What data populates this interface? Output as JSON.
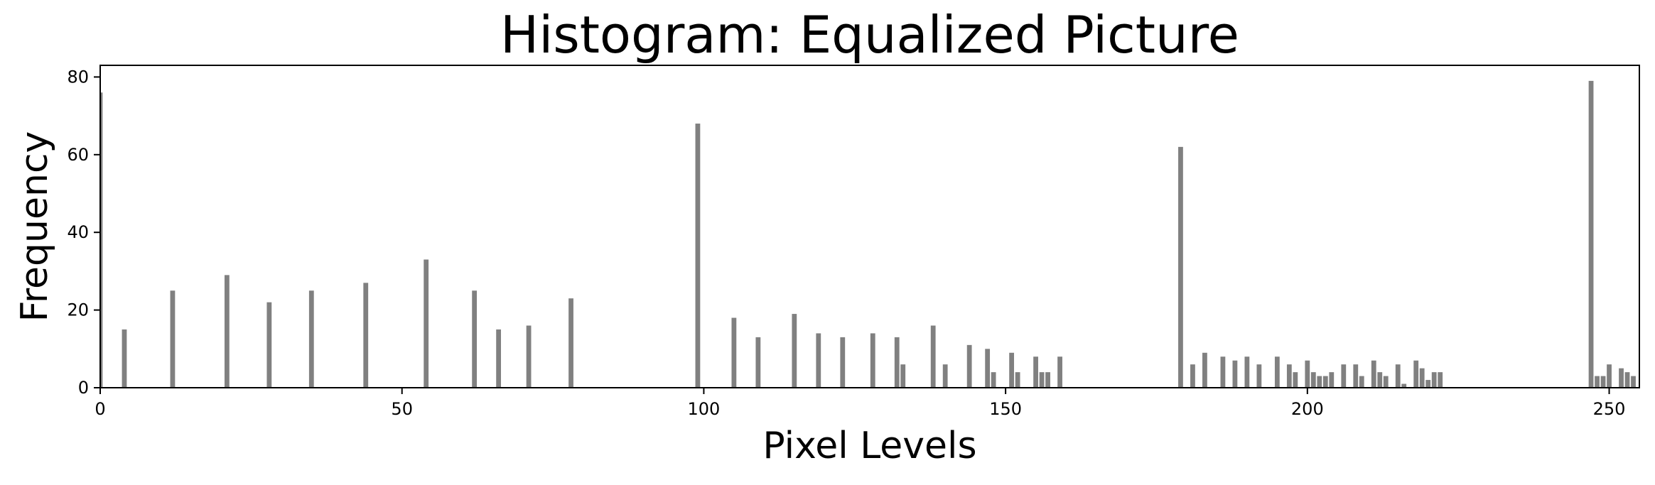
{
  "chart_data": {
    "type": "bar",
    "title": "Histogram: Equalized Picture",
    "xlabel": "Pixel Levels",
    "ylabel": "Frequency",
    "xlim": [
      0,
      255
    ],
    "ylim": [
      0,
      83
    ],
    "xticks": [
      0,
      50,
      100,
      150,
      200,
      250
    ],
    "yticks": [
      0,
      20,
      40,
      60,
      80
    ],
    "grid": false,
    "bar_color": "#808080",
    "series": [
      {
        "x": [
          0,
          4,
          12,
          21,
          28,
          35,
          44,
          54,
          62,
          66,
          71,
          78,
          99,
          105,
          109,
          115,
          119,
          123,
          128,
          132,
          133,
          138,
          140,
          144,
          147,
          148,
          151,
          152,
          155,
          156,
          157,
          159,
          179,
          181,
          183,
          186,
          188,
          190,
          192,
          195,
          197,
          198,
          200,
          201,
          202,
          203,
          204,
          206,
          208,
          209,
          211,
          212,
          213,
          215,
          216,
          218,
          219,
          220,
          221,
          222,
          247,
          248,
          249,
          250,
          252,
          253,
          254
        ],
        "values": [
          76,
          15,
          25,
          29,
          22,
          25,
          27,
          33,
          25,
          15,
          16,
          23,
          68,
          18,
          13,
          19,
          14,
          13,
          14,
          13,
          6,
          16,
          6,
          11,
          10,
          4,
          9,
          4,
          8,
          4,
          4,
          8,
          62,
          6,
          9,
          8,
          7,
          8,
          6,
          8,
          6,
          4,
          7,
          4,
          3,
          3,
          4,
          6,
          6,
          3,
          7,
          4,
          3,
          6,
          1,
          7,
          5,
          2,
          4,
          4,
          79,
          3,
          3,
          6,
          5,
          4,
          3
        ]
      }
    ]
  }
}
